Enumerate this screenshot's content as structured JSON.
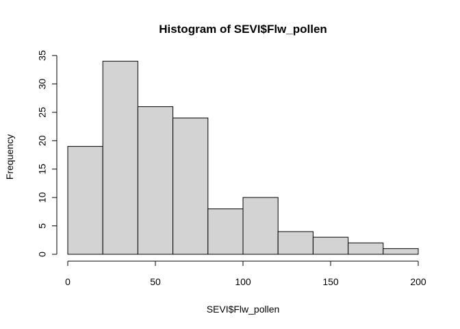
{
  "chart_data": {
    "type": "bar",
    "title": "Histogram of SEVI$Flw_pollen",
    "xlabel": "SEVI$Flw_pollen",
    "ylabel": "Frequency",
    "bins": [
      {
        "from": 0,
        "to": 20,
        "count": 19
      },
      {
        "from": 20,
        "to": 40,
        "count": 34
      },
      {
        "from": 40,
        "to": 60,
        "count": 26
      },
      {
        "from": 60,
        "to": 80,
        "count": 24
      },
      {
        "from": 80,
        "to": 100,
        "count": 8
      },
      {
        "from": 100,
        "to": 120,
        "count": 10
      },
      {
        "from": 120,
        "to": 140,
        "count": 4
      },
      {
        "from": 140,
        "to": 160,
        "count": 3
      },
      {
        "from": 160,
        "to": 180,
        "count": 2
      },
      {
        "from": 180,
        "to": 200,
        "count": 1
      }
    ],
    "xlim": [
      0,
      200
    ],
    "ylim": [
      0,
      35
    ],
    "x_ticks": [
      0,
      50,
      100,
      150,
      200
    ],
    "y_ticks": [
      0,
      5,
      10,
      15,
      20,
      25,
      30,
      35
    ],
    "grid": false,
    "colors": {
      "bar_fill": "#d3d3d3",
      "bar_stroke": "#000000"
    }
  }
}
